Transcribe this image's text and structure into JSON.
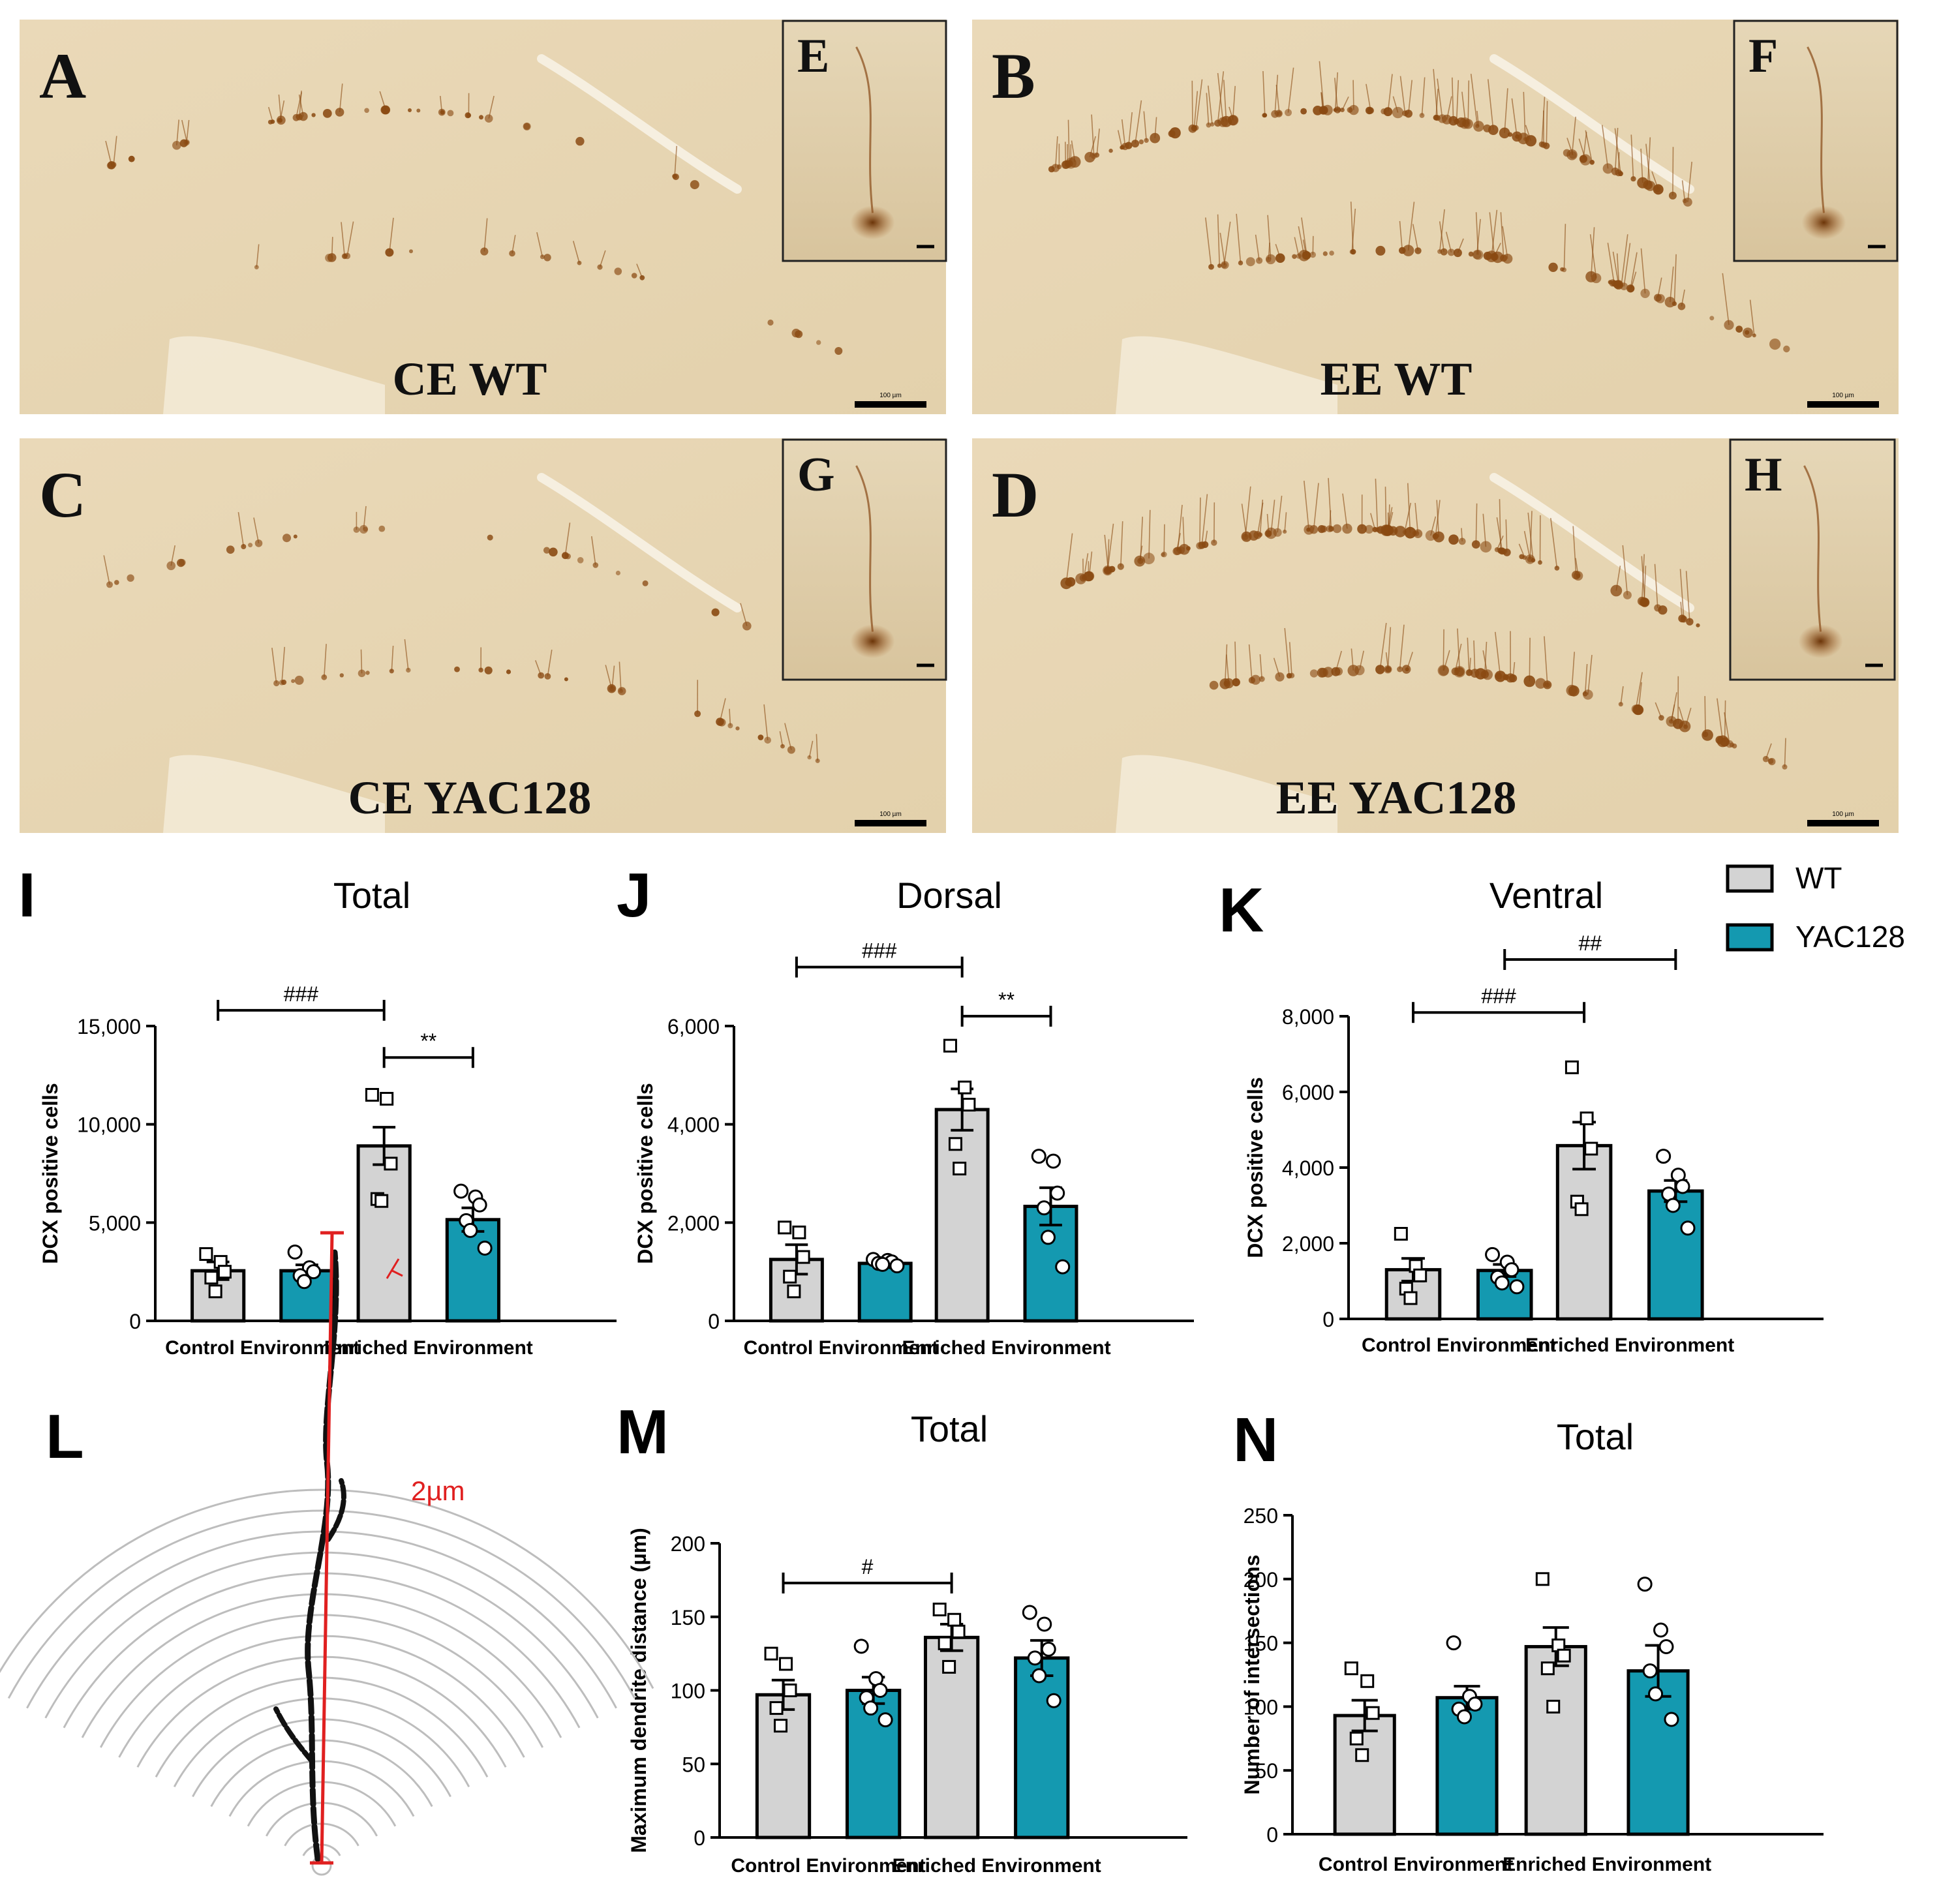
{
  "colors": {
    "wt": "#d3d3d3",
    "yac128": "#1499b0",
    "tissue": "#e8dcc0",
    "stain": "#8a4a12",
    "sholl_ring": "#bdbdbd",
    "sholl_radius": "#e02020"
  },
  "micrographs": [
    {
      "letter": "A",
      "inset_letter": "E",
      "caption": "CE WT",
      "scale_label": "100 µm",
      "density": "low"
    },
    {
      "letter": "B",
      "inset_letter": "F",
      "caption": "EE WT",
      "scale_label": "100 µm",
      "density": "high"
    },
    {
      "letter": "C",
      "inset_letter": "G",
      "caption": "CE YAC128",
      "scale_label": "100 µm",
      "density": "low"
    },
    {
      "letter": "D",
      "inset_letter": "H",
      "caption": "EE YAC128",
      "scale_label": "100 µm",
      "density": "high"
    }
  ],
  "legend": {
    "items": [
      {
        "label": "WT",
        "color": "#d3d3d3"
      },
      {
        "label": "YAC128",
        "color": "#1499b0"
      }
    ]
  },
  "sholl": {
    "letter": "L",
    "radius_label": "2µm"
  },
  "chart_data": [
    {
      "letter": "I",
      "type": "bar",
      "title": "Total",
      "ylabel": "DCX positive cells",
      "categories": [
        "Control Environment",
        "Enriched Environment"
      ],
      "ylim": [
        0,
        15000
      ],
      "yticks": [
        0,
        5000,
        10000,
        15000
      ],
      "ytick_labels": [
        "0",
        "5,000",
        "10,000",
        "15,000"
      ],
      "series": [
        {
          "name": "WT",
          "values": [
            2550,
            8900
          ],
          "errors": [
            450,
            950
          ],
          "points": [
            [
              3400,
              3000,
              2500,
              2200,
              1500
            ],
            [
              11500,
              11300,
              8000,
              6200,
              6100
            ]
          ]
        },
        {
          "name": "YAC128",
          "values": [
            2550,
            5150
          ],
          "errors": [
            300,
            600
          ],
          "points": [
            [
              3500,
              2700,
              2500,
              2300,
              2000
            ],
            [
              6600,
              6300,
              5900,
              5100,
              4600,
              3700
            ]
          ]
        }
      ],
      "significance": [
        {
          "from": [
            0,
            0
          ],
          "to": [
            1,
            0
          ],
          "label": "###",
          "level": 15800
        },
        {
          "from": [
            1,
            0
          ],
          "to": [
            1,
            1
          ],
          "label": "**",
          "level": 13400
        }
      ]
    },
    {
      "letter": "J",
      "type": "bar",
      "title": "Dorsal",
      "ylabel": "DCX positive cells",
      "categories": [
        "Control Environment",
        "Enriched Environment"
      ],
      "ylim": [
        0,
        6000
      ],
      "yticks": [
        0,
        2000,
        4000,
        6000
      ],
      "ytick_labels": [
        "0",
        "2,000",
        "4,000",
        "6,000"
      ],
      "series": [
        {
          "name": "WT",
          "values": [
            1250,
            4300
          ],
          "errors": [
            300,
            420
          ],
          "points": [
            [
              1900,
              1800,
              1300,
              900,
              600
            ],
            [
              5600,
              4750,
              4400,
              3600,
              3100
            ]
          ]
        },
        {
          "name": "YAC128",
          "values": [
            1170,
            2330
          ],
          "errors": [
            60,
            380
          ],
          "points": [
            [
              1250,
              1230,
              1200,
              1170,
              1150,
              1120
            ],
            [
              3350,
              3250,
              2600,
              2300,
              1700,
              1100
            ]
          ]
        }
      ],
      "significance": [
        {
          "from": [
            0,
            0
          ],
          "to": [
            1,
            0
          ],
          "label": "###",
          "level": 7200
        },
        {
          "from": [
            1,
            0
          ],
          "to": [
            1,
            1
          ],
          "label": "**",
          "level": 6200
        }
      ]
    },
    {
      "letter": "K",
      "type": "bar",
      "title": "Ventral",
      "ylabel": "DCX positive cells",
      "categories": [
        "Control Environment",
        "Enriched Environment"
      ],
      "ylim": [
        0,
        8000
      ],
      "yticks": [
        0,
        2000,
        4000,
        6000,
        8000
      ],
      "ytick_labels": [
        "0",
        "2,000",
        "4,000",
        "6,000",
        "8,000"
      ],
      "series": [
        {
          "name": "WT",
          "values": [
            1300,
            4580
          ],
          "errors": [
            300,
            620
          ],
          "points": [
            [
              2250,
              1400,
              1150,
              800,
              550
            ],
            [
              6650,
              5300,
              4500,
              3100,
              2900
            ]
          ]
        },
        {
          "name": "YAC128",
          "values": [
            1280,
            3380
          ],
          "errors": [
            160,
            280
          ],
          "points": [
            [
              1700,
              1500,
              1300,
              1100,
              950,
              850
            ],
            [
              4300,
              3800,
              3500,
              3300,
              3000,
              2400
            ]
          ]
        }
      ],
      "significance": [
        {
          "from": [
            0,
            0
          ],
          "to": [
            1,
            0
          ],
          "label": "###",
          "level": 8100
        },
        {
          "from": [
            0,
            1
          ],
          "to": [
            1,
            1
          ],
          "label": "##",
          "level": 9500
        }
      ]
    },
    {
      "letter": "M",
      "type": "bar",
      "title": "Total",
      "ylabel": "Maximum dendrite distance (µm)",
      "categories": [
        "Control Environment",
        "Enriched Environment"
      ],
      "ylim": [
        0,
        200
      ],
      "yticks": [
        0,
        50,
        100,
        150,
        200
      ],
      "ytick_labels": [
        "0",
        "50",
        "100",
        "150",
        "200"
      ],
      "series": [
        {
          "name": "WT",
          "values": [
            97,
            136
          ],
          "errors": [
            10,
            9
          ],
          "points": [
            [
              125,
              118,
              100,
              88,
              76
            ],
            [
              155,
              148,
              140,
              132,
              116
            ]
          ]
        },
        {
          "name": "YAC128",
          "values": [
            100,
            122
          ],
          "errors": [
            9,
            12
          ],
          "points": [
            [
              130,
              108,
              100,
              95,
              88,
              80
            ],
            [
              153,
              145,
              128,
              122,
              110,
              93
            ]
          ]
        }
      ],
      "significance": [
        {
          "from": [
            0,
            0
          ],
          "to": [
            1,
            0
          ],
          "label": "#",
          "level": 173
        }
      ]
    },
    {
      "letter": "N",
      "type": "bar",
      "title": "Total",
      "ylabel": "Number of intersections",
      "categories": [
        "Control Environment",
        "Enriched Environment"
      ],
      "ylim": [
        0,
        250
      ],
      "yticks": [
        0,
        50,
        100,
        150,
        200,
        250
      ],
      "ytick_labels": [
        "0",
        "50",
        "100",
        "150",
        "200",
        "250"
      ],
      "series": [
        {
          "name": "WT",
          "values": [
            93,
            147
          ],
          "errors": [
            12,
            15
          ],
          "points": [
            [
              130,
              120,
              95,
              75,
              62
            ],
            [
              200,
              148,
              140,
              130,
              100
            ]
          ]
        },
        {
          "name": "YAC128",
          "values": [
            107,
            128
          ],
          "errors": [
            9,
            20
          ],
          "points": [
            [
              150,
              108,
              102,
              98,
              92
            ],
            [
              196,
              160,
              147,
              128,
              110,
              90
            ]
          ]
        }
      ],
      "significance": []
    }
  ]
}
